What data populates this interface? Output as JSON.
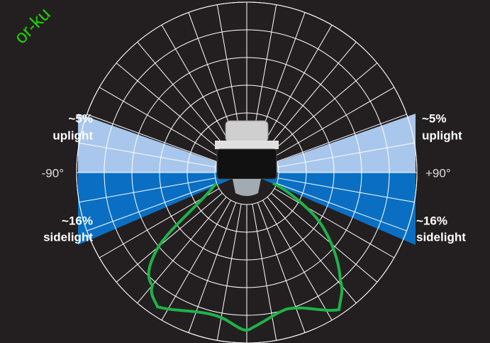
{
  "watermark": "or-ku",
  "left": {
    "uplight_share": "~5%",
    "uplight": "uplight",
    "angle": "-90°",
    "sidelight_share": "~16%",
    "sidelight": "sidelight"
  },
  "right": {
    "uplight_share": "~5%",
    "uplight": "uplight",
    "angle": "+90°",
    "sidelight_share": "~16%",
    "sidelight": "sidelight"
  }
}
